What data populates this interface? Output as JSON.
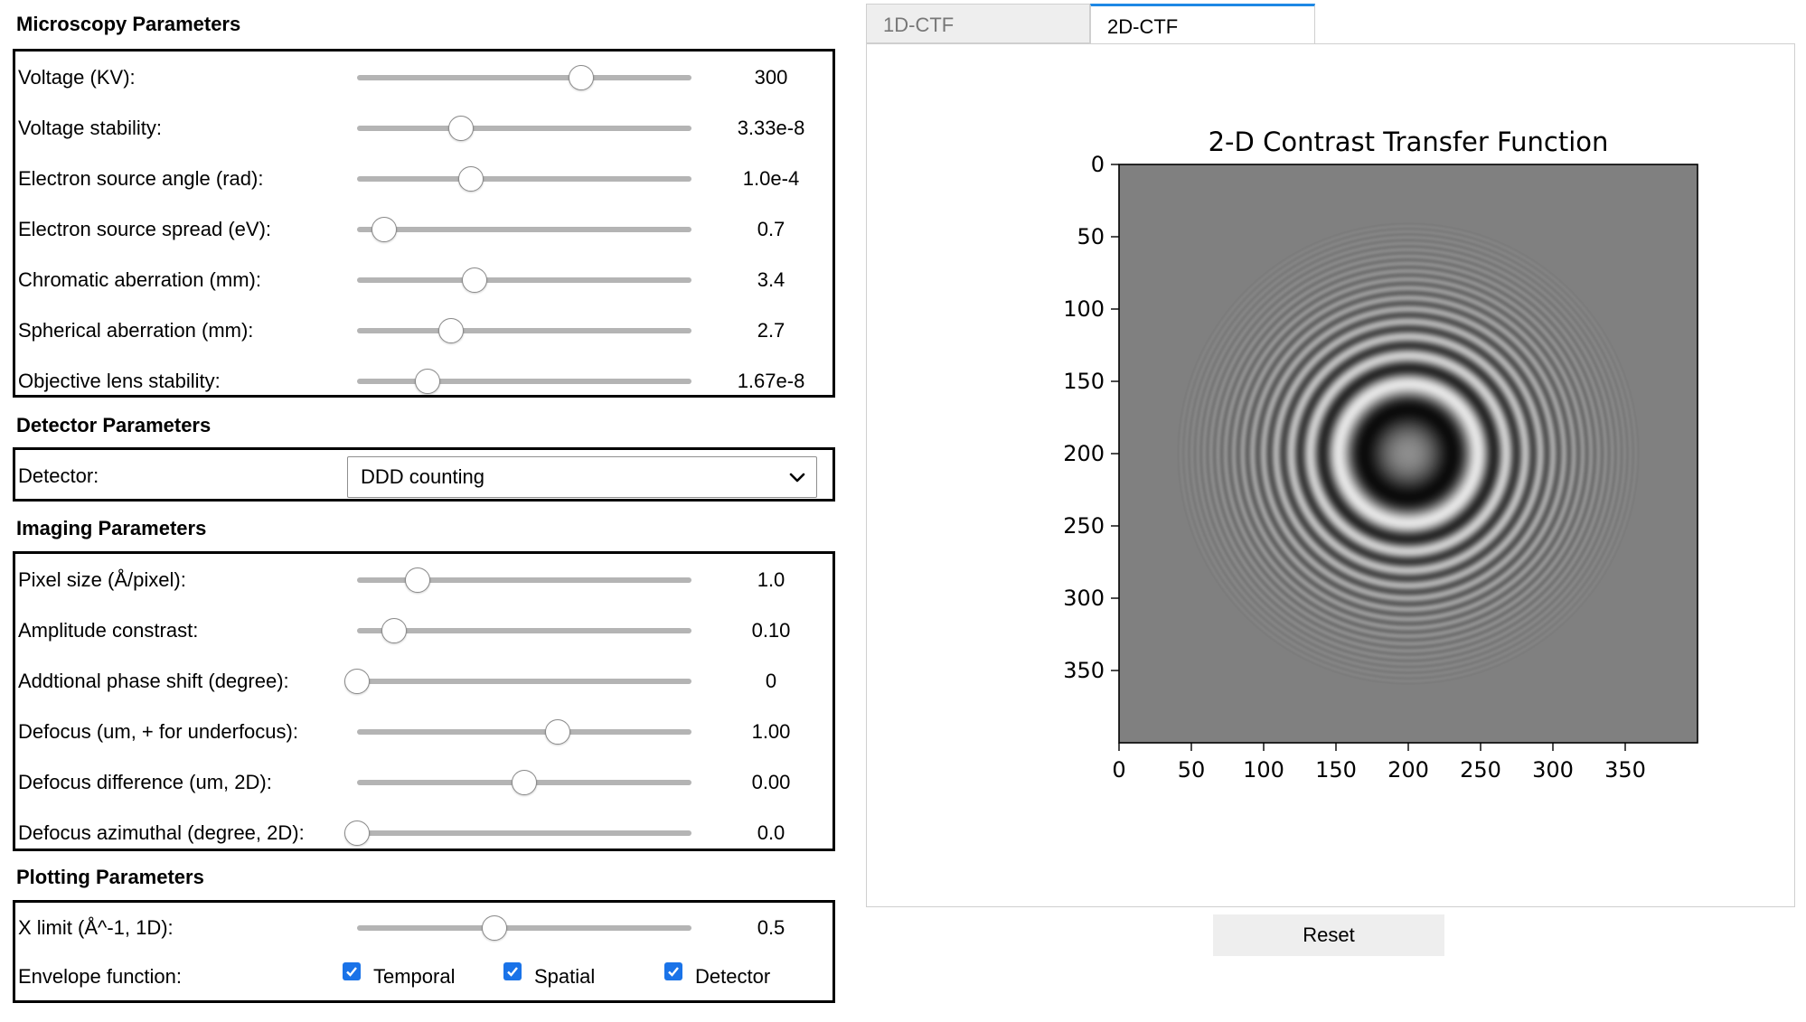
{
  "microscopy": {
    "title": "Microscopy Parameters",
    "rows": [
      {
        "label": "Voltage (KV):",
        "value": "300",
        "level": 0.67
      },
      {
        "label": "Voltage stability:",
        "value": "3.33e-8",
        "level": 0.31
      },
      {
        "label": "Electron source angle (rad):",
        "value": "1.0e-4",
        "level": 0.34
      },
      {
        "label": "Electron source spread (eV):",
        "value": "0.7",
        "level": 0.08
      },
      {
        "label": "Chromatic aberration (mm):",
        "value": "3.4",
        "level": 0.35
      },
      {
        "label": "Spherical aberration (mm):",
        "value": "2.7",
        "level": 0.28
      },
      {
        "label": "Objective lens stability:",
        "value": "1.67e-8",
        "level": 0.21
      }
    ]
  },
  "detector": {
    "title": "Detector Parameters",
    "label": "Detector:",
    "selected": "DDD counting"
  },
  "imaging": {
    "title": "Imaging Parameters",
    "rows": [
      {
        "label": "Pixel size (Å/pixel):",
        "value": "1.0",
        "level": 0.18
      },
      {
        "label": "Amplitude constrast:",
        "value": "0.10",
        "level": 0.11
      },
      {
        "label": "Addtional phase shift (degree):",
        "value": "0",
        "level": 0.0
      },
      {
        "label": "Defocus (um, + for underfocus):",
        "value": "1.00",
        "level": 0.6
      },
      {
        "label": "Defocus difference (um, 2D):",
        "value": "0.00",
        "level": 0.5
      },
      {
        "label": "Defocus azimuthal (degree, 2D):",
        "value": "0.0",
        "level": 0.0
      }
    ]
  },
  "plotting": {
    "title": "Plotting Parameters",
    "xlimit": {
      "label": "X limit (Å^-1, 1D):",
      "value": "0.5",
      "level": 0.41
    },
    "envelope": {
      "label": "Envelope function:",
      "options": [
        {
          "label": "Temporal",
          "checked": true
        },
        {
          "label": "Spatial",
          "checked": true
        },
        {
          "label": "Detector",
          "checked": true
        }
      ]
    }
  },
  "tabs": [
    {
      "label": "1D-CTF",
      "active": false
    },
    {
      "label": "2D-CTF",
      "active": true
    }
  ],
  "reset_label": "Reset",
  "chart_data": {
    "type": "heatmap",
    "title": "2-D Contrast Transfer Function",
    "xlabel": "",
    "ylabel": "",
    "xlim": [
      0,
      400
    ],
    "ylim": [
      400,
      0
    ],
    "x_ticks": [
      "0",
      "50",
      "100",
      "150",
      "200",
      "250",
      "300",
      "350"
    ],
    "y_ticks": [
      "0",
      "50",
      "100",
      "150",
      "200",
      "250",
      "300",
      "350"
    ],
    "colormap": "gray",
    "center": [
      200,
      200
    ],
    "pattern": "concentric CTF rings (Thon rings) decaying outward"
  },
  "colors": {
    "accent": "#1e88e5",
    "checkbox": "#1a73e8",
    "slider_track": "#b4b4b4",
    "plot_background": "#808080"
  }
}
